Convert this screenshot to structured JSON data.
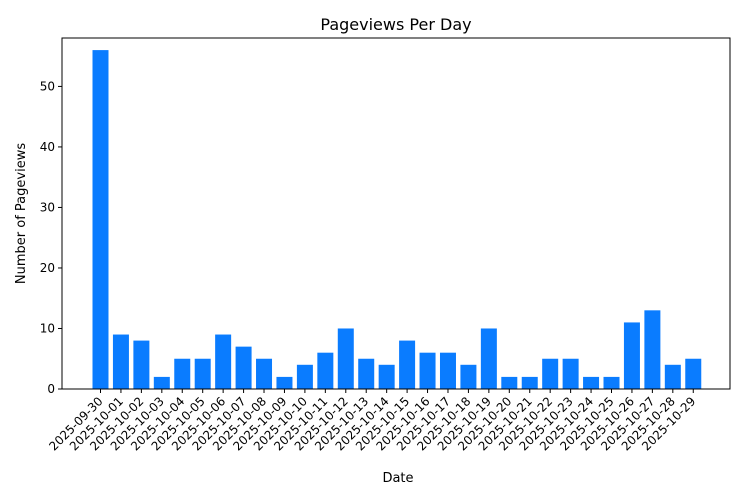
{
  "chart_data": {
    "type": "bar",
    "title": "Pageviews Per Day",
    "xlabel": "Date",
    "ylabel": "Number of Pageviews",
    "ylim": [
      0,
      58
    ],
    "yticks": [
      0,
      10,
      20,
      30,
      40,
      50
    ],
    "grid": false,
    "bar_color": "#0a7cff",
    "categories": [
      "2025-09-30",
      "2025-10-01",
      "2025-10-02",
      "2025-10-03",
      "2025-10-04",
      "2025-10-05",
      "2025-10-06",
      "2025-10-07",
      "2025-10-08",
      "2025-10-09",
      "2025-10-10",
      "2025-10-11",
      "2025-10-12",
      "2025-10-13",
      "2025-10-14",
      "2025-10-15",
      "2025-10-16",
      "2025-10-17",
      "2025-10-18",
      "2025-10-19",
      "2025-10-20",
      "2025-10-21",
      "2025-10-22",
      "2025-10-23",
      "2025-10-24",
      "2025-10-25",
      "2025-10-26",
      "2025-10-27",
      "2025-10-28",
      "2025-10-29"
    ],
    "values": [
      56,
      9,
      8,
      2,
      5,
      5,
      9,
      7,
      5,
      2,
      4,
      6,
      10,
      5,
      4,
      8,
      6,
      6,
      4,
      10,
      2,
      2,
      5,
      5,
      2,
      2,
      11,
      13,
      4,
      5
    ]
  }
}
